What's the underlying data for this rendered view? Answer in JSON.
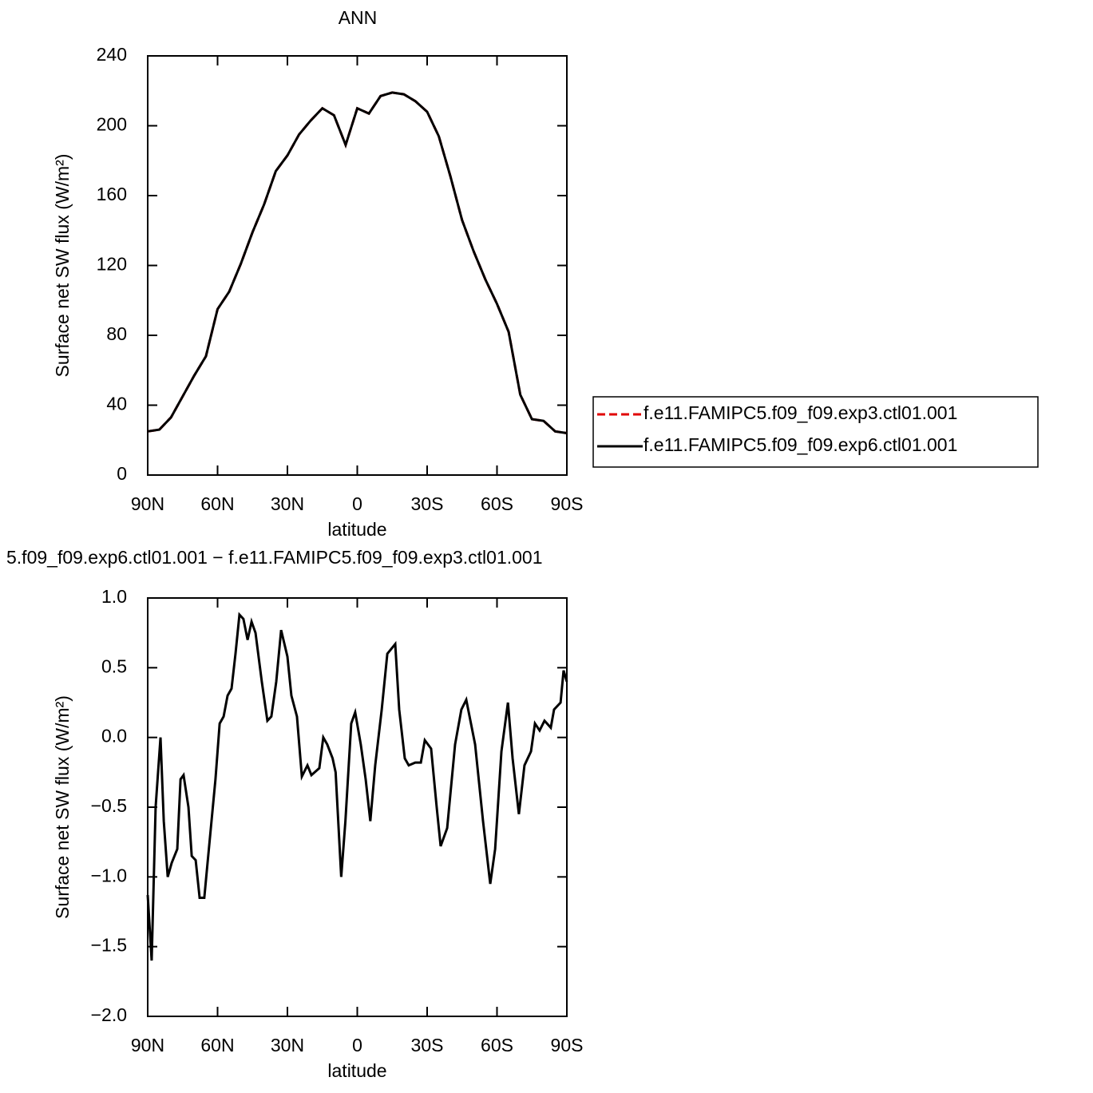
{
  "chart_data": [
    {
      "type": "line",
      "title": "ANN",
      "xlabel": "latitude",
      "ylabel": "Surface net SW flux (W/m²)",
      "x": [
        90,
        85,
        80,
        75,
        70,
        65,
        60,
        55,
        50,
        45,
        40,
        35,
        30,
        25,
        20,
        15,
        10,
        5,
        0,
        -5,
        -10,
        -15,
        -20,
        -25,
        -30,
        -35,
        -40,
        -45,
        -50,
        -55,
        -60,
        -65,
        -70,
        -75,
        -80,
        -85,
        -90
      ],
      "series": [
        {
          "name": "f.e11.FAMIPC5.f09_f09.exp3.ctl01.001",
          "color": "#e00000",
          "line_style": "dashed",
          "values": [
            25,
            26,
            33,
            45,
            57,
            68,
            95,
            105,
            121,
            139,
            155,
            174,
            183,
            195,
            203,
            210,
            206,
            189,
            210,
            207,
            217,
            219,
            218,
            214,
            208,
            194,
            171,
            146,
            128,
            112,
            98,
            82,
            46,
            32,
            31,
            25,
            24
          ]
        },
        {
          "name": "f.e11.FAMIPC5.f09_f09.exp6.ctl01.001",
          "color": "#000000",
          "line_style": "solid",
          "values": [
            25,
            26,
            33,
            45,
            57,
            68,
            95,
            105,
            121,
            139,
            155,
            174,
            183,
            195,
            203,
            210,
            206,
            189,
            210,
            207,
            217,
            219,
            218,
            214,
            208,
            194,
            171,
            146,
            128,
            112,
            98,
            82,
            46,
            32,
            31,
            25,
            24
          ]
        }
      ],
      "xlim": [
        90,
        -90
      ],
      "xticks": [
        {
          "value": 90,
          "label": "90N"
        },
        {
          "value": 60,
          "label": "60N"
        },
        {
          "value": 30,
          "label": "30N"
        },
        0,
        {
          "value": -30,
          "label": "30S"
        },
        {
          "value": -60,
          "label": "60S"
        },
        {
          "value": -90,
          "label": "90S"
        }
      ],
      "ylim": [
        0,
        240
      ],
      "yticks": [
        0,
        40,
        80,
        120,
        160,
        200,
        240
      ],
      "legend": "outside right"
    },
    {
      "type": "line",
      "title": "5.f09_f09.exp6.ctl01.001 − f.e11.FAMIPC5.f09_f09.exp3.ctl01.001",
      "xlabel": "latitude",
      "ylabel": "Surface net SW flux (W/m²)",
      "x": [
        90,
        88.3,
        86.6,
        84.5,
        83.1,
        81.4,
        79.7,
        77.3,
        75.9,
        74.6,
        72.5,
        71.1,
        69.4,
        67.7,
        65.7,
        64.3,
        62.6,
        60.9,
        59.1,
        57.4,
        55.7,
        54,
        52.3,
        50.6,
        48.9,
        47.1,
        45.4,
        43.7,
        41,
        38.6,
        36.9,
        34.8,
        32.7,
        30,
        28.3,
        25.9,
        23.8,
        21.4,
        19.7,
        16.3,
        14.6,
        12.9,
        10.6,
        9.3,
        6.9,
        5.1,
        2.6,
        0.9,
        -1.5,
        -3.6,
        -5.6,
        -7.7,
        -10.5,
        -12.9,
        -16.3,
        -18,
        -20.4,
        -22.1,
        -24.9,
        -27.3,
        -29,
        -31.7,
        -34.1,
        -35.8,
        -38.6,
        -42,
        -44.7,
        -46.8,
        -50.6,
        -54,
        -57.1,
        -59.2,
        -61.9,
        -64.7,
        -66.7,
        -69.4,
        -71.8,
        -74.6,
        -76.3,
        -78.3,
        -80.4,
        -83.1,
        -84.5,
        -87.3,
        -88.6,
        -90
      ],
      "series": [
        {
          "color": "#000000",
          "line_style": "solid",
          "values": [
            -1.13,
            -1.6,
            -0.5,
            0.0,
            -0.6,
            -1.0,
            -0.9,
            -0.8,
            -0.3,
            -0.27,
            -0.5,
            -0.85,
            -0.88,
            -1.15,
            -1.15,
            -0.9,
            -0.6,
            -0.3,
            0.1,
            0.15,
            0.3,
            0.35,
            0.6,
            0.88,
            0.85,
            0.7,
            0.83,
            0.75,
            0.4,
            0.12,
            0.15,
            0.4,
            0.77,
            0.58,
            0.3,
            0.15,
            -0.28,
            -0.2,
            -0.27,
            -0.22,
            0.0,
            -0.05,
            -0.15,
            -0.25,
            -1.0,
            -0.6,
            0.1,
            0.18,
            -0.05,
            -0.3,
            -0.6,
            -0.2,
            0.2,
            0.6,
            0.67,
            0.2,
            -0.15,
            -0.2,
            -0.18,
            -0.18,
            -0.02,
            -0.08,
            -0.5,
            -0.78,
            -0.65,
            -0.05,
            0.2,
            0.27,
            -0.05,
            -0.6,
            -1.05,
            -0.8,
            -0.1,
            0.25,
            -0.15,
            -0.55,
            -0.2,
            -0.1,
            0.1,
            0.05,
            0.12,
            0.07,
            0.2,
            0.25,
            0.48,
            0.4
          ]
        }
      ],
      "xlim": [
        90,
        -90
      ],
      "xticks": [
        {
          "value": 90,
          "label": "90N"
        },
        {
          "value": 60,
          "label": "60N"
        },
        {
          "value": 30,
          "label": "30N"
        },
        0,
        {
          "value": -30,
          "label": "30S"
        },
        {
          "value": -60,
          "label": "60S"
        },
        {
          "value": -90,
          "label": "90S"
        }
      ],
      "ylim": [
        -2,
        1
      ],
      "yticks": [
        {
          "value": -2,
          "label": "−2.0"
        },
        {
          "value": -1.5,
          "label": "−1.5"
        },
        {
          "value": -1,
          "label": "−1.0"
        },
        {
          "value": -0.5,
          "label": "−0.5"
        },
        {
          "value": 0,
          "label": "0.0"
        },
        0.5,
        {
          "value": 1,
          "label": "1.0"
        }
      ]
    }
  ]
}
